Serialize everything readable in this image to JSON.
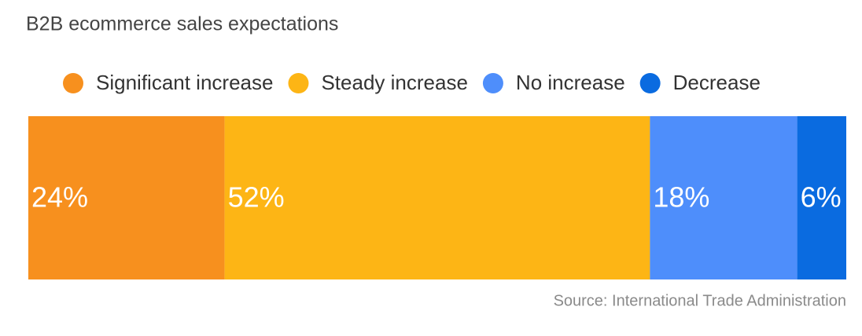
{
  "chart_data": {
    "type": "stacked-bar",
    "orientation": "horizontal",
    "title": "B2B ecommerce sales expectations",
    "source": "Source: International Trade Administration",
    "categories": [
      null
    ],
    "xlim": [
      0,
      100
    ],
    "legend": "top",
    "series": [
      {
        "name": "Significant increase",
        "color": "#F7901E",
        "values": [
          24
        ],
        "value_labels": [
          "24%"
        ]
      },
      {
        "name": "Steady increase",
        "color": "#FDB515",
        "values": [
          52
        ],
        "value_labels": [
          "52%"
        ]
      },
      {
        "name": "No increase",
        "color": "#4E8EFB",
        "values": [
          18
        ],
        "value_labels": [
          "18%"
        ]
      },
      {
        "name": "Decrease",
        "color": "#0A6BE0",
        "values": [
          6
        ],
        "value_labels": [
          "6%"
        ]
      }
    ]
  }
}
